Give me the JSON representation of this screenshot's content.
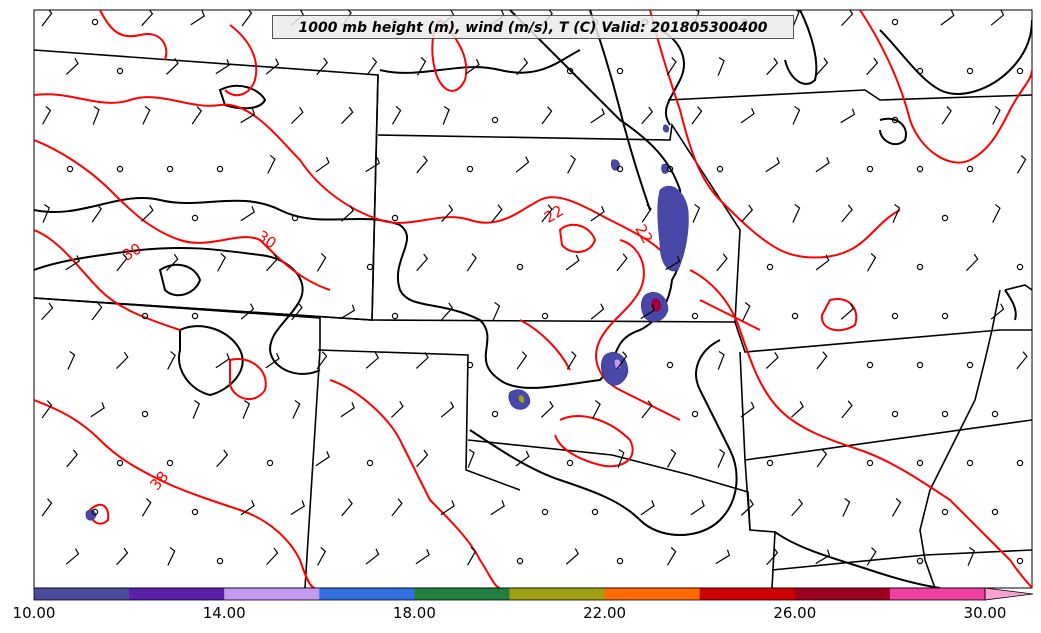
{
  "title": "1000 mb height (m), wind (m/s), T (C) Valid: 201805300400",
  "contour_labels": {
    "label_1": "30",
    "label_2": "30",
    "label_3": "38",
    "label_4": "22",
    "label_5": "22"
  },
  "colorbar": {
    "tick_labels": [
      "10.00",
      "14.00",
      "18.00",
      "22.00",
      "26.00",
      "30.00"
    ],
    "colors": [
      "#4c4c9c",
      "#5a20a8",
      "#c49af0",
      "#3070e0",
      "#208040",
      "#a0a010",
      "#ff6a00",
      "#d00000",
      "#a00020",
      "#f040a0",
      "#f8a0d0"
    ]
  },
  "colors": {
    "temperature_contour": "#ff0000",
    "height_contour": "#000000",
    "reflectivity": "#4848a8",
    "background": "#ffffff"
  }
}
